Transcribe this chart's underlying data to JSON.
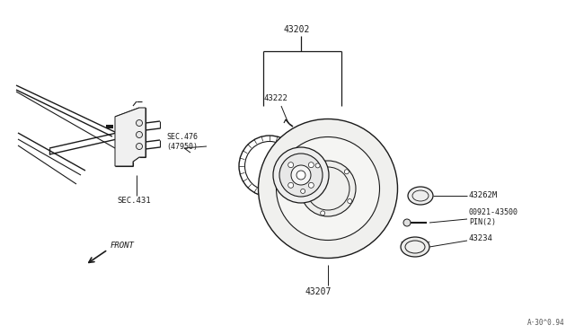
{
  "bg_color": "#ffffff",
  "line_color": "#1a1a1a",
  "watermark": "A·30^0.94",
  "parts": {
    "43202": {
      "label": "43202"
    },
    "43222": {
      "label": "43222"
    },
    "SEC476": {
      "label": "SEC.476\n(47950)"
    },
    "43207": {
      "label": "43207"
    },
    "SEC431": {
      "label": "SEC.431"
    },
    "43262M": {
      "label": "43262M"
    },
    "0092143500": {
      "label": "00921-43500\nPIN(2)"
    },
    "43234": {
      "label": "43234"
    }
  },
  "front_label": "FRONT"
}
